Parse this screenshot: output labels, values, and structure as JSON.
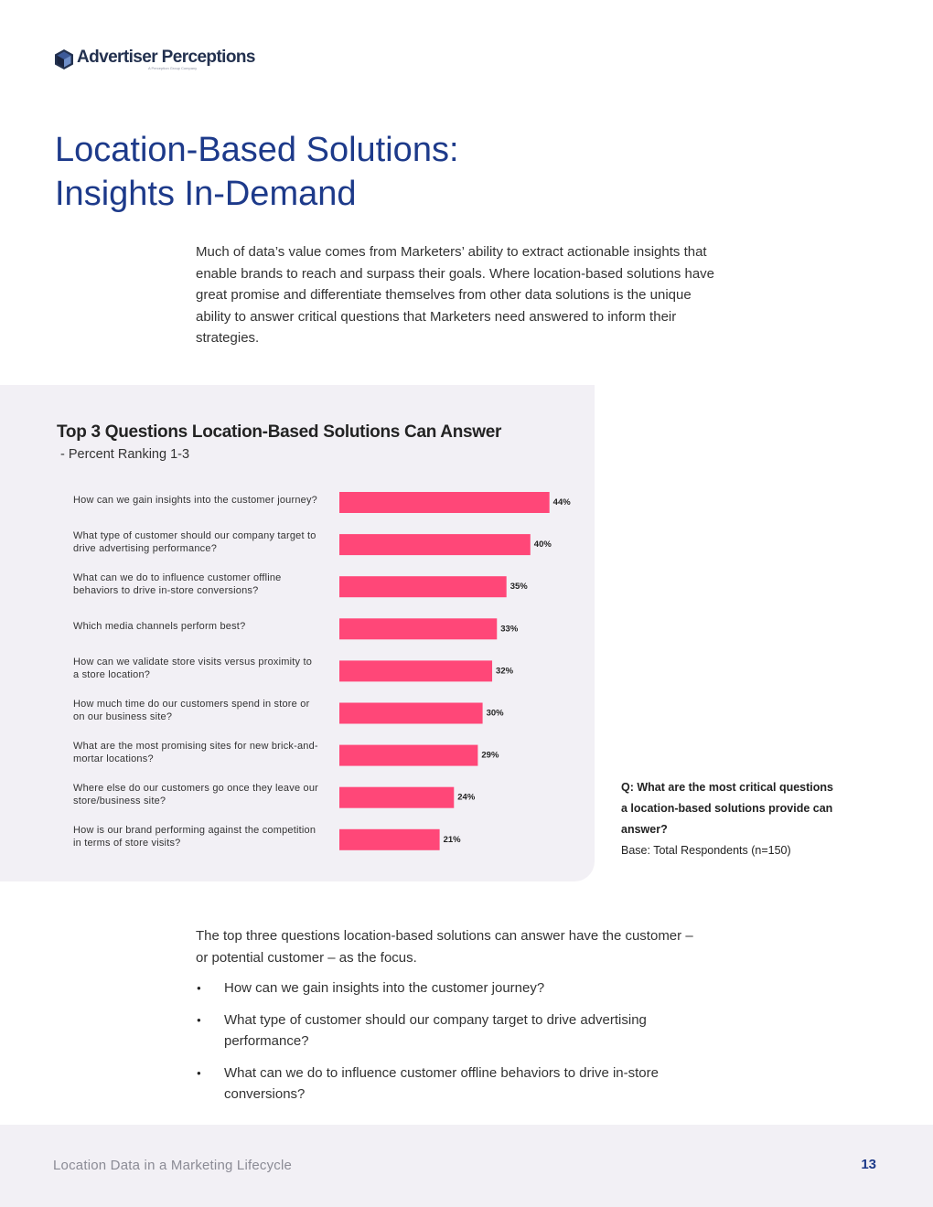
{
  "header": {
    "brand": "Advertiser Perceptions",
    "brand_sub": "A Perception Group Company"
  },
  "title": {
    "line1": "Location-Based Solutions:",
    "line2": "Insights In-Demand"
  },
  "intro": "Much of data’s value comes from Marketers’ ability to extract actionable insights that enable brands to reach and surpass their goals. Where location-based solutions have great promise and differentiate themselves from other data solutions is the unique ability to answer critical questions that Marketers need answered to inform their strategies.",
  "chart_data": {
    "type": "bar",
    "orientation": "horizontal",
    "title": "Top 3 Questions Location-Based Solutions Can Answer",
    "subtitle": "- Percent Ranking 1-3",
    "categories": [
      "How can we gain insights into the customer journey?",
      "What type of customer should our company target to drive advertising performance?",
      "What can we do to influence customer offline behaviors to drive in-store conversions?",
      "Which media channels perform best?",
      "How can we validate store visits versus proximity to a store location?",
      "How much time do our customers spend in store or  on our business site?",
      "What are the most promising sites for new brick-and-mortar locations?",
      "Where else do our customers go once they leave our store/business site?",
      "How is our brand performing against the competition in terms of store visits?"
    ],
    "values": [
      44,
      40,
      35,
      33,
      32,
      30,
      29,
      24,
      21
    ],
    "value_labels": [
      "44%",
      "40%",
      "35%",
      "33%",
      "32%",
      "30%",
      "29%",
      "24%",
      "21%"
    ],
    "unit": "%",
    "color": "#ff4778"
  },
  "note": {
    "question": "Q: What are the most critical questions a location-based solutions provide can answer?",
    "base": "Base: Total Respondents (n=150)"
  },
  "body2": "The top three questions location-based solutions can answer have the customer – or potential customer – as the focus.",
  "bullets": [
    "How can we gain insights into the customer journey?",
    "What type of customer should our company target to drive advertising performance?",
    "What can we do to influence customer offline behaviors to drive in-store conversions?"
  ],
  "footer": {
    "text": "Location Data in a Marketing Lifecycle",
    "page": "13"
  }
}
